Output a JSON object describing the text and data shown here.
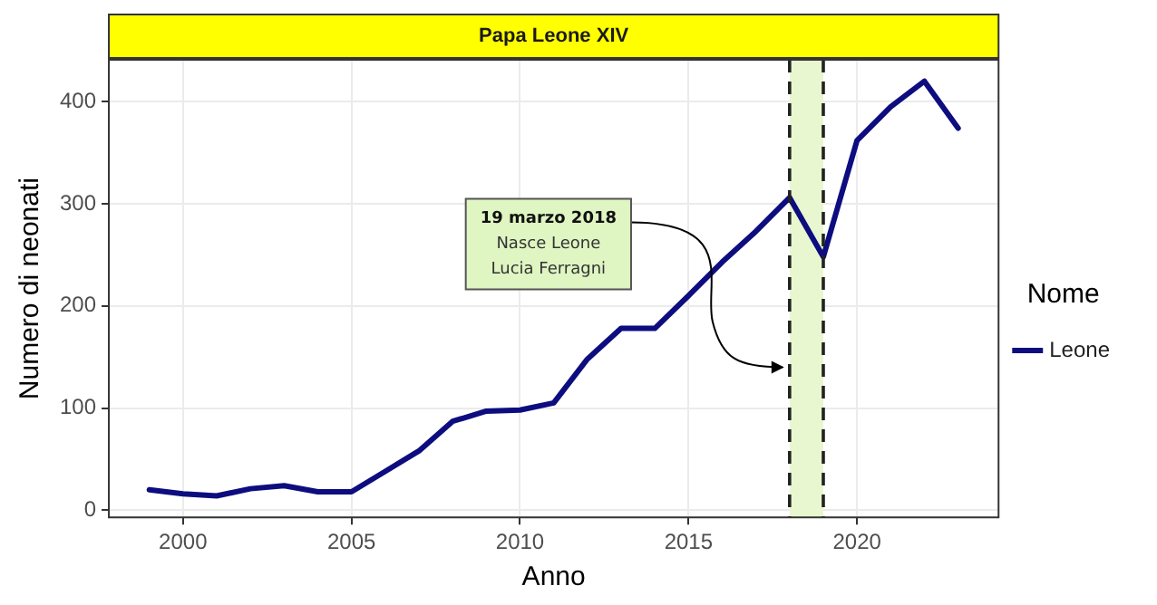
{
  "chart_data": {
    "type": "line",
    "title": "Papa Leone XIV",
    "xlabel": "Anno",
    "ylabel": "Numero di neonati",
    "legend_title": "Nome",
    "x": [
      1999,
      2000,
      2001,
      2002,
      2003,
      2004,
      2005,
      2006,
      2007,
      2008,
      2009,
      2010,
      2011,
      2012,
      2013,
      2014,
      2015,
      2016,
      2017,
      2018,
      2019,
      2020,
      2021,
      2022,
      2023
    ],
    "series": [
      {
        "name": "Leone",
        "color": "#0d0d80",
        "values": [
          20,
          16,
          14,
          21,
          24,
          18,
          18,
          38,
          58,
          87,
          97,
          98,
          105,
          148,
          178,
          178,
          210,
          243,
          273,
          306,
          248,
          362,
          395,
          420,
          374
        ]
      }
    ],
    "xlim": [
      1997.8,
      2024.2
    ],
    "xticks": [
      2000,
      2005,
      2010,
      2015,
      2020
    ],
    "ylim": [
      -7,
      441
    ],
    "yticks": [
      0,
      100,
      200,
      300,
      400
    ],
    "bands": [
      {
        "axis": "x",
        "from": 2018,
        "to": 2019,
        "color": "#e8f7cf"
      }
    ],
    "ref_lines": [
      {
        "axis": "x",
        "value": 2018,
        "line_style": "dashed",
        "color": "#222222"
      },
      {
        "axis": "x",
        "value": 2019,
        "line_style": "dashed",
        "color": "#222222"
      }
    ],
    "annotations": [
      {
        "text": "19 marzo 2018\nNasce Leone\nLucia Ferragni",
        "x": 2018,
        "y": 140
      }
    ],
    "grid": true,
    "legend": "right",
    "marker": "none",
    "line_style": "solid"
  }
}
